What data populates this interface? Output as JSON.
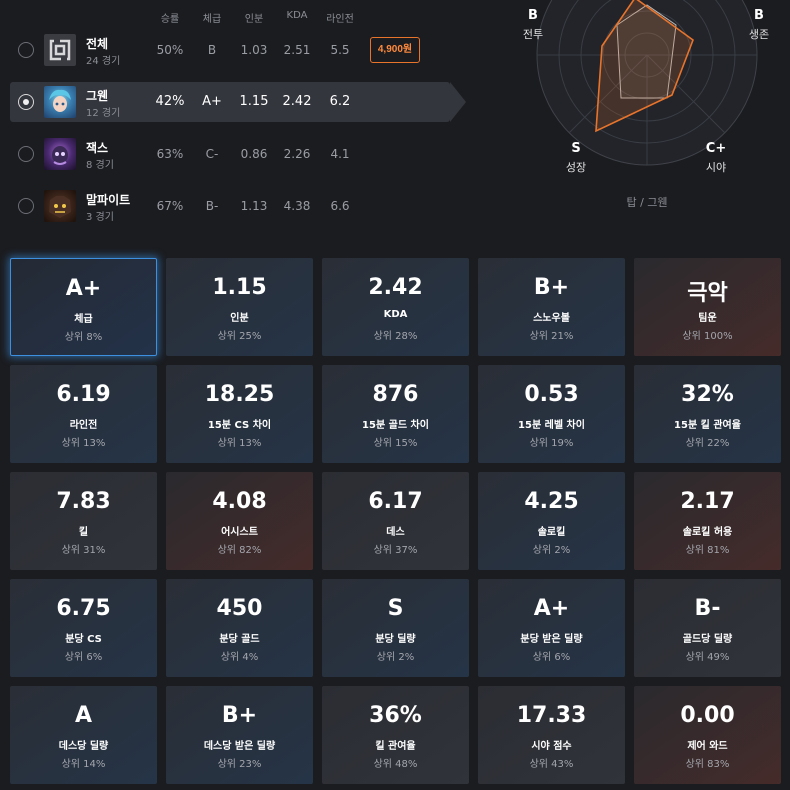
{
  "table": {
    "headers": [
      "승률",
      "체급",
      "인분",
      "KDA",
      "라인전"
    ],
    "rows": [
      {
        "name": "전체",
        "games": "24 경기",
        "winrate": "50%",
        "tier": "B",
        "inbun": "1.03",
        "kda": "2.51",
        "lane": "5.5",
        "icon": "all-champions-icon",
        "price": "4,900원",
        "selected": false
      },
      {
        "name": "그웬",
        "games": "12 경기",
        "winrate": "42%",
        "tier": "A+",
        "inbun": "1.15",
        "kda": "2.42",
        "lane": "6.2",
        "icon": "gwen-portrait",
        "selected": true
      },
      {
        "name": "잭스",
        "games": "8 경기",
        "winrate": "63%",
        "tier": "C-",
        "inbun": "0.86",
        "kda": "2.26",
        "lane": "4.1",
        "icon": "jax-portrait",
        "selected": false
      },
      {
        "name": "말파이트",
        "games": "3 경기",
        "winrate": "67%",
        "tier": "B-",
        "inbun": "1.13",
        "kda": "4.38",
        "lane": "6.6",
        "icon": "malphite-portrait",
        "selected": false
      }
    ]
  },
  "radar": {
    "labels": [
      {
        "grade": "B",
        "name": "전투"
      },
      {
        "grade": "B",
        "name": "생존"
      },
      {
        "grade": "C+",
        "name": "시야"
      },
      {
        "grade": "S",
        "name": "성장"
      }
    ],
    "caption": "탑 / 그웬",
    "accent": "#e8742c"
  },
  "cards": [
    {
      "value": "A+",
      "label": "체급",
      "rank": "상위 8%",
      "tone": "focus"
    },
    {
      "value": "1.15",
      "label": "인분",
      "rank": "상위 25%",
      "tone": "blue"
    },
    {
      "value": "2.42",
      "label": "KDA",
      "rank": "상위 28%",
      "tone": "blue"
    },
    {
      "value": "B+",
      "label": "스노우볼",
      "rank": "상위 21%",
      "tone": "blue"
    },
    {
      "value": "극악",
      "label": "팀운",
      "rank": "상위 100%",
      "tone": "red"
    },
    {
      "value": "6.19",
      "label": "라인전",
      "rank": "상위 13%",
      "tone": "blue"
    },
    {
      "value": "18.25",
      "label": "15분 CS 차이",
      "rank": "상위 13%",
      "tone": "blue"
    },
    {
      "value": "876",
      "label": "15분 골드 차이",
      "rank": "상위 15%",
      "tone": "blue"
    },
    {
      "value": "0.53",
      "label": "15분 레벨 차이",
      "rank": "상위 19%",
      "tone": "blue"
    },
    {
      "value": "32%",
      "label": "15분 킬 관여율",
      "rank": "상위 22%",
      "tone": "blue"
    },
    {
      "value": "7.83",
      "label": "킬",
      "rank": "상위 31%",
      "tone": "gray"
    },
    {
      "value": "4.08",
      "label": "어시스트",
      "rank": "상위 82%",
      "tone": "red"
    },
    {
      "value": "6.17",
      "label": "데스",
      "rank": "상위 37%",
      "tone": "gray"
    },
    {
      "value": "4.25",
      "label": "솔로킬",
      "rank": "상위 2%",
      "tone": "blue"
    },
    {
      "value": "2.17",
      "label": "솔로킬 허용",
      "rank": "상위 81%",
      "tone": "red"
    },
    {
      "value": "6.75",
      "label": "분당 CS",
      "rank": "상위 6%",
      "tone": "blue"
    },
    {
      "value": "450",
      "label": "분당 골드",
      "rank": "상위 4%",
      "tone": "blue"
    },
    {
      "value": "S",
      "label": "분당 딜량",
      "rank": "상위 2%",
      "tone": "blue"
    },
    {
      "value": "A+",
      "label": "분당 받은 딜량",
      "rank": "상위 6%",
      "tone": "blue"
    },
    {
      "value": "B-",
      "label": "골드당 딜량",
      "rank": "상위 49%",
      "tone": "gray"
    },
    {
      "value": "A",
      "label": "데스당 딜량",
      "rank": "상위 14%",
      "tone": "blue"
    },
    {
      "value": "B+",
      "label": "데스당 받은 딜량",
      "rank": "상위 23%",
      "tone": "blue"
    },
    {
      "value": "36%",
      "label": "킬 관여율",
      "rank": "상위 48%",
      "tone": "gray"
    },
    {
      "value": "17.33",
      "label": "시야 점수",
      "rank": "상위 43%",
      "tone": "gray"
    },
    {
      "value": "0.00",
      "label": "제어 와드",
      "rank": "상위 83%",
      "tone": "red"
    }
  ]
}
